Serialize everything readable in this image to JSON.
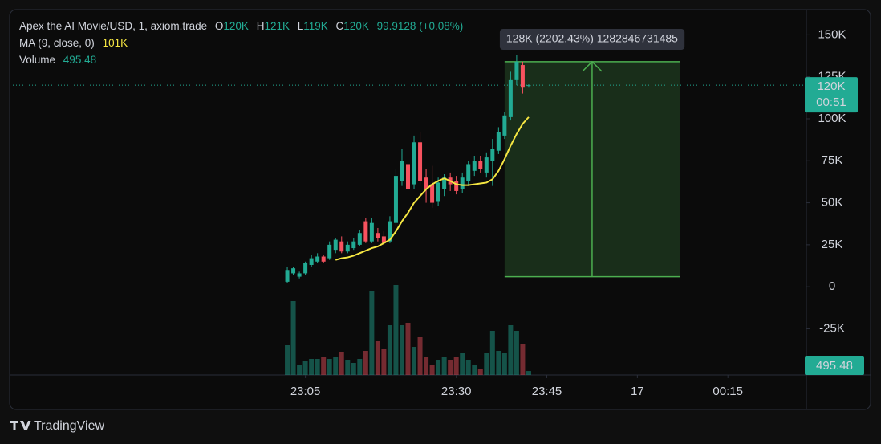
{
  "chart_data": {
    "type": "candlestick",
    "title": "Apex the AI Movie/USD, 1, axiom.trade",
    "ohlc_legend": {
      "keys": [
        "O",
        "H",
        "L",
        "C"
      ],
      "values": [
        "120K",
        "121K",
        "119K",
        "120K"
      ],
      "change": "99.9128 (+0.08%)"
    },
    "x": [
      "23:02",
      "23:03",
      "23:04",
      "23:05",
      "23:06",
      "23:07",
      "23:08",
      "23:09",
      "23:10",
      "23:11",
      "23:12",
      "23:13",
      "23:14",
      "23:15",
      "23:16",
      "23:17",
      "23:18",
      "23:19",
      "23:20",
      "23:21",
      "23:22",
      "23:23",
      "23:24",
      "23:25",
      "23:26",
      "23:27",
      "23:28",
      "23:29",
      "23:30",
      "23:31",
      "23:32",
      "23:33",
      "23:34",
      "23:35",
      "23:36",
      "23:37",
      "23:38",
      "23:39",
      "23:40",
      "23:41",
      "23:42"
    ],
    "open": [
      3000,
      8000,
      6000,
      8000,
      13000,
      15000,
      18000,
      17000,
      22000,
      27000,
      21000,
      23000,
      25000,
      39000,
      27000,
      32000,
      30000,
      27000,
      38000,
      63000,
      73000,
      61000,
      86000,
      65000,
      61000,
      51000,
      58000,
      65000,
      63000,
      58000,
      63000,
      69000,
      75000,
      68000,
      75000,
      81000,
      90000,
      101000,
      123000,
      132000,
      120000
    ],
    "high": [
      12000,
      12000,
      9000,
      15000,
      19000,
      20000,
      19000,
      27000,
      29000,
      30000,
      27000,
      29000,
      34000,
      41000,
      41000,
      35000,
      33000,
      42000,
      70000,
      82000,
      77000,
      90000,
      92000,
      70000,
      72000,
      65000,
      67000,
      68000,
      66000,
      68000,
      75000,
      78000,
      78000,
      80000,
      88000,
      95000,
      104000,
      128000,
      138000,
      134000,
      121000
    ],
    "low": [
      2000,
      7000,
      5000,
      7000,
      12000,
      14000,
      14000,
      16000,
      20000,
      20000,
      20000,
      22000,
      24000,
      26000,
      26000,
      27000,
      25000,
      26000,
      36000,
      60000,
      55000,
      58000,
      60000,
      50000,
      47000,
      48000,
      54000,
      57000,
      55000,
      56000,
      60000,
      66000,
      68000,
      65000,
      60000,
      79000,
      88000,
      99000,
      120000,
      115000,
      119000
    ],
    "close": [
      10000,
      11000,
      8000,
      14000,
      17000,
      18000,
      15000,
      25000,
      28000,
      21000,
      25000,
      27000,
      32000,
      27000,
      38000,
      29000,
      26000,
      39000,
      66000,
      75000,
      58000,
      86000,
      63000,
      58000,
      50000,
      62000,
      65000,
      61000,
      57000,
      65000,
      73000,
      75000,
      70000,
      77000,
      82000,
      92000,
      102000,
      123000,
      134000,
      119000,
      120000
    ],
    "up_color": "#22ab94",
    "down_color": "#f7525f",
    "ma": {
      "name": "MA (9, close, 0)",
      "color": "#f5e642",
      "last_value_label": "101K",
      "values": [
        null,
        null,
        null,
        null,
        null,
        null,
        null,
        null,
        16000,
        17000,
        17500,
        18500,
        20000,
        21500,
        23000,
        24000,
        26000,
        28000,
        33000,
        39000,
        44000,
        50000,
        54000,
        58000,
        61000,
        63000,
        64500,
        63000,
        61000,
        60500,
        60500,
        61000,
        61500,
        62000,
        64000,
        69000,
        76000,
        84000,
        91000,
        97000,
        101000
      ]
    },
    "volume": {
      "name": "Volume",
      "values": [
        3700,
        9200,
        1200,
        1700,
        2000,
        2000,
        2200,
        2000,
        2200,
        2900,
        1900,
        1500,
        2000,
        3000,
        10500,
        4200,
        3200,
        6200,
        11200,
        6200,
        6500,
        3500,
        4700,
        2200,
        1200,
        1900,
        2200,
        1900,
        2200,
        2700,
        1900,
        1200,
        700,
        2700,
        5500,
        3000,
        2700,
        6200,
        5500,
        3900,
        495.48
      ],
      "ylim": [
        0,
        12000
      ]
    },
    "last_price": {
      "label": "120K",
      "countdown": "00:51"
    },
    "measure": {
      "x": [
        "23:38",
        "00:07"
      ],
      "y": [
        6000,
        134000
      ],
      "label": "128K (2202.43%) 1282846731485",
      "color": "#4caf50"
    },
    "xlim": [
      "22:16",
      "00:28"
    ],
    "xticks": [
      "23:05",
      "23:30",
      "23:45",
      {
        "value": "00:00",
        "label": "17"
      },
      "00:15"
    ],
    "ylim": [
      -52500,
      165000
    ],
    "yticks": [
      {
        "value": 150000,
        "label": "150K"
      },
      {
        "value": 125000,
        "label": "125K"
      },
      {
        "value": 100000,
        "label": "100K"
      },
      {
        "value": 75000,
        "label": "75K"
      },
      {
        "value": 50000,
        "label": "50K"
      },
      {
        "value": 25000,
        "label": "25K"
      },
      0,
      {
        "value": -25000,
        "label": "-25K"
      }
    ]
  },
  "footer": "TradingView"
}
